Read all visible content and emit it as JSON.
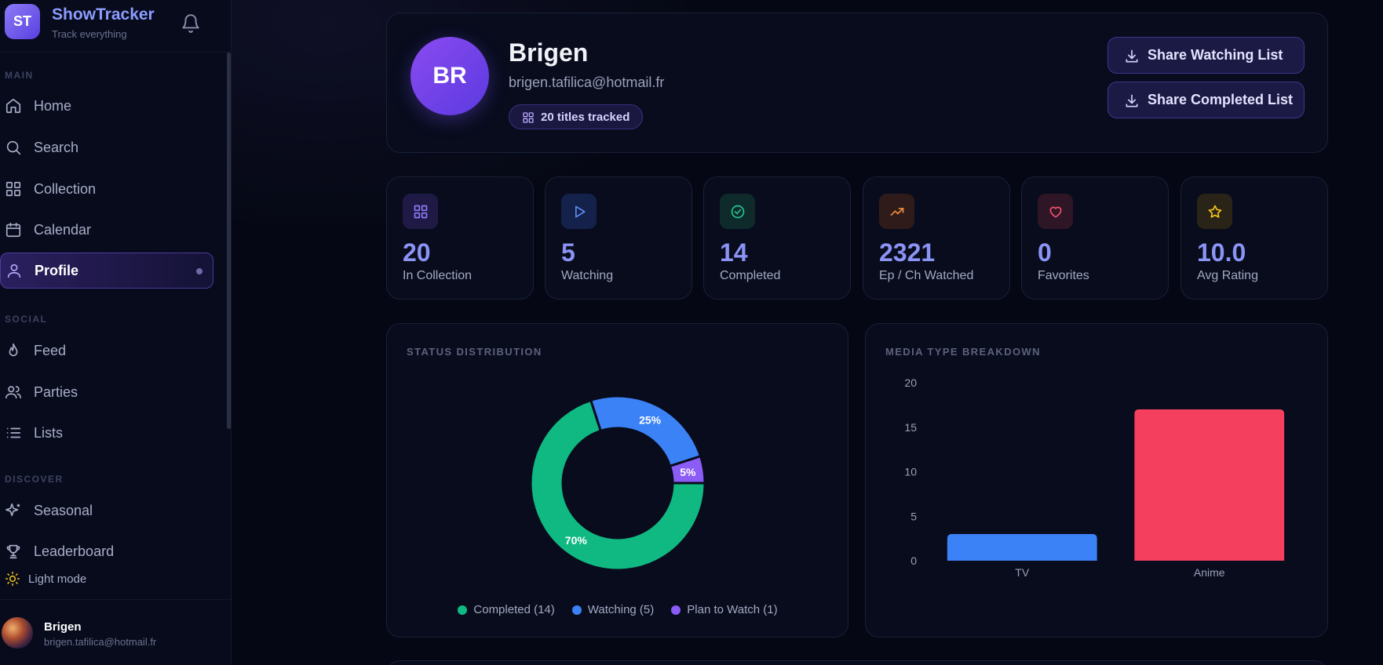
{
  "app": {
    "logo_text": "ST",
    "name": "ShowTracker",
    "tagline": "Track everything"
  },
  "sidebar": {
    "sections": {
      "main": "MAIN",
      "social": "SOCIAL",
      "discover": "DISCOVER"
    },
    "items": [
      {
        "label": "Home",
        "icon": "home-icon"
      },
      {
        "label": "Search",
        "icon": "search-icon"
      },
      {
        "label": "Collection",
        "icon": "grid-icon"
      },
      {
        "label": "Calendar",
        "icon": "calendar-icon"
      },
      {
        "label": "Profile",
        "icon": "user-icon",
        "active": true
      },
      {
        "label": "Feed",
        "icon": "flame-icon"
      },
      {
        "label": "Parties",
        "icon": "users-icon"
      },
      {
        "label": "Lists",
        "icon": "list-icon"
      },
      {
        "label": "Seasonal",
        "icon": "sparkles-icon"
      },
      {
        "label": "Leaderboard",
        "icon": "trophy-icon"
      }
    ],
    "light_mode_label": "Light mode",
    "user": {
      "name": "Brigen",
      "email": "brigen.tafilica@hotmail.fr"
    }
  },
  "profile": {
    "initials": "BR",
    "name": "Brigen",
    "email": "brigen.tafilica@hotmail.fr",
    "badge": "20 titles tracked",
    "share_watching": "Share Watching List",
    "share_completed": "Share Completed List"
  },
  "stats": [
    {
      "value": "20",
      "label": "In Collection",
      "icon": "grid-icon",
      "color": "#8b7bf6",
      "bg": "#1f1a45"
    },
    {
      "value": "5",
      "label": "Watching",
      "icon": "play-icon",
      "color": "#5b8cf6",
      "bg": "#14214a"
    },
    {
      "value": "14",
      "label": "Completed",
      "icon": "check-circle-icon",
      "color": "#22c38e",
      "bg": "#0f2a2a"
    },
    {
      "value": "2321",
      "label": "Ep / Ch Watched",
      "icon": "trending-up-icon",
      "color": "#f08a3c",
      "bg": "#2f1c1a"
    },
    {
      "value": "0",
      "label": "Favorites",
      "icon": "heart-icon",
      "color": "#f0506e",
      "bg": "#2f1626"
    },
    {
      "value": "10.0",
      "label": "Avg Rating",
      "icon": "star-icon",
      "color": "#f5c518",
      "bg": "#2a2418"
    }
  ],
  "status_chart": {
    "title": "STATUS DISTRIBUTION",
    "chart_data": {
      "type": "pie",
      "title": "STATUS DISTRIBUTION",
      "slices": [
        {
          "name": "Completed",
          "value": 14,
          "percent_label": "70%",
          "legend": "Completed (14)",
          "color": "#10b981"
        },
        {
          "name": "Watching",
          "value": 5,
          "percent_label": "25%",
          "legend": "Watching (5)",
          "color": "#3b82f6"
        },
        {
          "name": "Plan to Watch",
          "value": 1,
          "percent_label": "5%",
          "legend": "Plan to Watch (1)",
          "color": "#8b5cf6"
        }
      ]
    }
  },
  "media_chart": {
    "title": "MEDIA TYPE BREAKDOWN",
    "chart_data": {
      "type": "bar",
      "title": "MEDIA TYPE BREAKDOWN",
      "categories": [
        "TV",
        "Anime"
      ],
      "values": [
        3,
        17
      ],
      "colors": [
        "#3b82f6",
        "#f43f5e"
      ],
      "ylim": [
        0,
        20
      ],
      "yticks": [
        0,
        5,
        10,
        15,
        20
      ]
    }
  }
}
